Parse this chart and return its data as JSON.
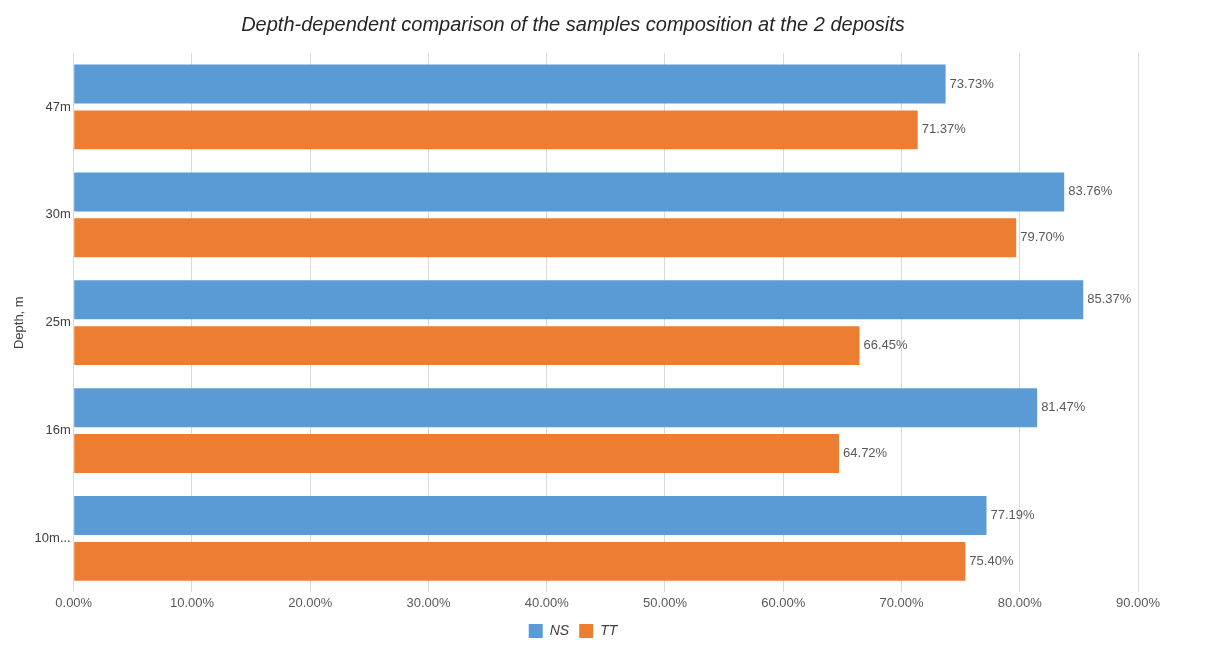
{
  "chart_data": {
    "type": "bar",
    "orientation": "horizontal",
    "title": "Depth-dependent comparison of the samples composition at the 2 deposits",
    "ylabel": "Depth, m",
    "categories": [
      "47m",
      "30m",
      "25m",
      "16m",
      "10m..."
    ],
    "series": [
      {
        "name": "NS",
        "color": "#5b9bd5",
        "values": [
          73.73,
          83.76,
          85.37,
          81.47,
          77.19
        ],
        "value_labels": [
          "73.73%",
          "83.76%",
          "85.37%",
          "81.47%",
          "77.19%"
        ]
      },
      {
        "name": "TT",
        "color": "#ed7d31",
        "values": [
          71.37,
          79.7,
          66.45,
          64.72,
          75.4
        ],
        "value_labels": [
          "71.37%",
          "79.70%",
          "66.45%",
          "64.72%",
          "75.40%"
        ]
      }
    ],
    "xlim": [
      0,
      90
    ],
    "xticks": [
      {
        "value": 0,
        "label": "0.00%"
      },
      {
        "value": 10,
        "label": "10.00%"
      },
      {
        "value": 20,
        "label": "20.00%"
      },
      {
        "value": 30,
        "label": "30.00%"
      },
      {
        "value": 40,
        "label": "40.00%"
      },
      {
        "value": 50,
        "label": "50.00%"
      },
      {
        "value": 60,
        "label": "60.00%"
      },
      {
        "value": 70,
        "label": "70.00%"
      },
      {
        "value": 80,
        "label": "80.00%"
      },
      {
        "value": 90,
        "label": "90.00%"
      }
    ],
    "grid": "x",
    "legend": "bottom"
  }
}
